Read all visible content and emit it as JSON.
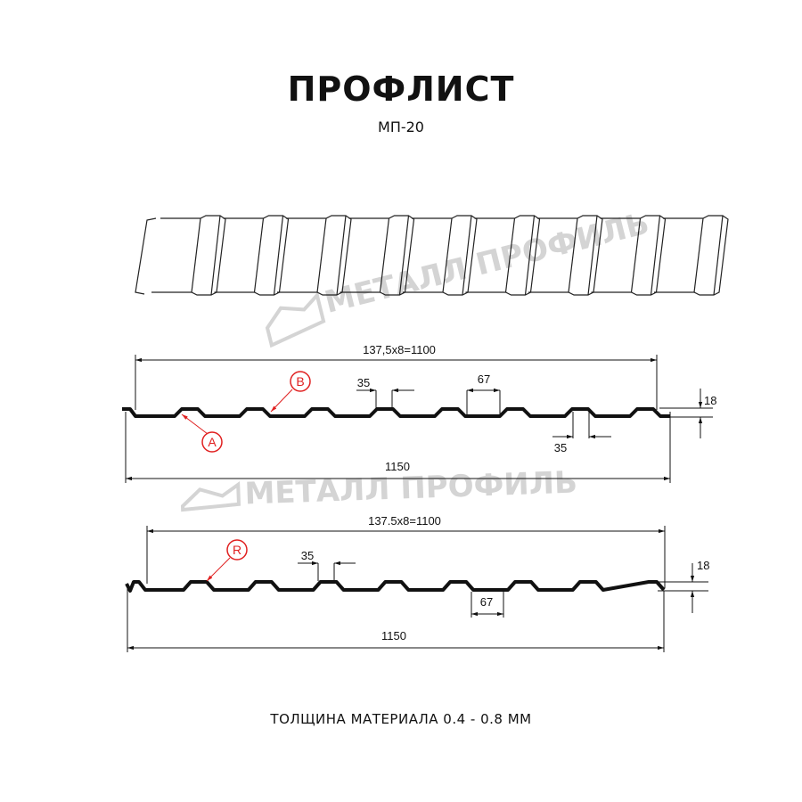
{
  "header": {
    "title": "ПРОФЛИСТ",
    "subtitle": "МП-20"
  },
  "watermark": {
    "text": "МЕТАЛЛ ПРОФИЛЬ"
  },
  "profile_1": {
    "pitch_dim": "137,5x8=1100",
    "width_dim": "1150",
    "crest_dim": "35",
    "trough_dim": "67",
    "bottom_crest_dim": "35",
    "height_dim": "18",
    "marker_a": "A",
    "marker_b": "B"
  },
  "profile_2": {
    "pitch_dim": "137.5x8=1100",
    "width_dim": "1150",
    "crest_dim": "35",
    "trough_dim": "67",
    "height_dim": "18",
    "marker_r": "R"
  },
  "colors": {
    "profile": "#111111",
    "marker": "#e02020",
    "watermark": "#d4d4d4"
  },
  "footer": {
    "thickness": "ТОЛЩИНА МАТЕРИАЛА 0.4 - 0.8 ММ"
  }
}
